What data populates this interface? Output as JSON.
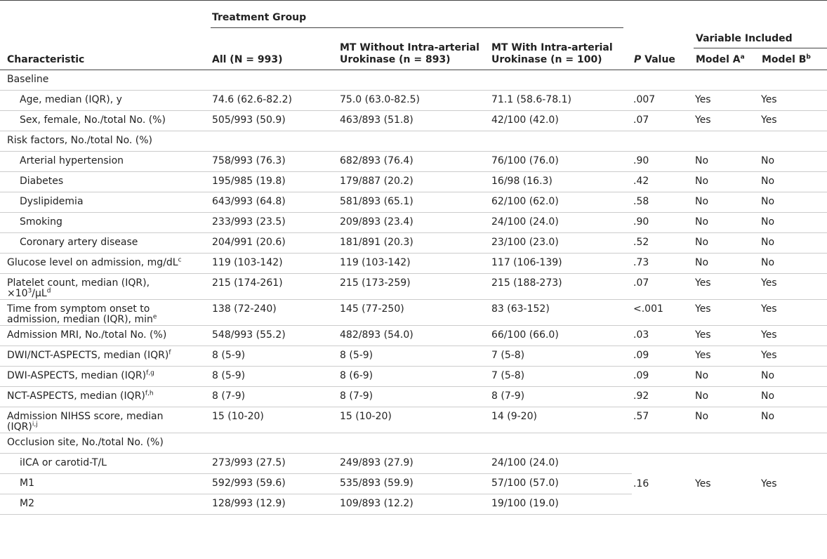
{
  "header": {
    "treatment_group": "Treatment Group",
    "variable_included": "Variable Included",
    "columns": [
      "Characteristic",
      "All (N = 993)",
      "MT Without Intra-arterial\nUrokinase (n = 893)",
      "MT With Intra-arterial\nUrokinase (n = 100)",
      [
        {
          "italic": "P"
        },
        " Value"
      ],
      [
        "Model A",
        {
          "sup": "a"
        }
      ],
      [
        "Model B",
        {
          "sup": "b"
        }
      ]
    ]
  },
  "rows": [
    {
      "label": "Baseline"
    },
    {
      "label": "Age, median (IQR), y",
      "indent": true,
      "cells": [
        "74.6 (62.6-82.2)",
        "75.0 (63.0-82.5)",
        "71.1 (58.6-78.1)",
        ".007",
        "Yes",
        "Yes"
      ]
    },
    {
      "label": "Sex, female, No./total No. (%)",
      "indent": true,
      "cells": [
        "505/993 (50.9)",
        "463/893 (51.8)",
        "42/100 (42.0)",
        ".07",
        "Yes",
        "Yes"
      ]
    },
    {
      "label": "Risk factors, No./total No. (%)"
    },
    {
      "label": "Arterial hypertension",
      "indent": true,
      "cells": [
        "758/993 (76.3)",
        "682/893 (76.4)",
        "76/100 (76.0)",
        ".90",
        "No",
        "No"
      ]
    },
    {
      "label": "Diabetes",
      "indent": true,
      "cells": [
        "195/985 (19.8)",
        "179/887 (20.2)",
        "16/98 (16.3)",
        ".42",
        "No",
        "No"
      ]
    },
    {
      "label": "Dyslipidemia",
      "indent": true,
      "cells": [
        "643/993 (64.8)",
        "581/893 (65.1)",
        "62/100 (62.0)",
        ".58",
        "No",
        "No"
      ]
    },
    {
      "label": "Smoking",
      "indent": true,
      "cells": [
        "233/993 (23.5)",
        "209/893 (23.4)",
        "24/100 (24.0)",
        ".90",
        "No",
        "No"
      ]
    },
    {
      "label": "Coronary artery disease",
      "indent": true,
      "cells": [
        "204/991 (20.6)",
        "181/891 (20.3)",
        "23/100 (23.0)",
        ".52",
        "No",
        "No"
      ]
    },
    {
      "label": [
        "Glucose level on admission, mg/dL",
        {
          "sup": "c"
        }
      ],
      "cells": [
        "119 (103-142)",
        "119 (103-142)",
        "117 (106-139)",
        ".73",
        "No",
        "No"
      ]
    },
    {
      "label": [
        "Platelet count, median (IQR),\n×10",
        {
          "sup": "3"
        },
        "/μL",
        {
          "sup": "d"
        }
      ],
      "cells": [
        "215 (174-261)",
        "215 (173-259)",
        "215 (188-273)",
        ".07",
        "Yes",
        "Yes"
      ]
    },
    {
      "label": [
        "Time from symptom onset to\nadmission, median (IQR), min",
        {
          "sup": "e"
        }
      ],
      "cells": [
        "138 (72-240)",
        "145 (77-250)",
        "83 (63-152)",
        "<.001",
        "Yes",
        "Yes"
      ]
    },
    {
      "label": "Admission MRI, No./total No. (%)",
      "cells": [
        "548/993 (55.2)",
        "482/893 (54.0)",
        "66/100 (66.0)",
        ".03",
        "Yes",
        "Yes"
      ]
    },
    {
      "label": [
        "DWI/NCT-ASPECTS, median (IQR)",
        {
          "sup": "f"
        }
      ],
      "cells": [
        "8 (5-9)",
        "8 (5-9)",
        "7 (5-8)",
        ".09",
        "Yes",
        "Yes"
      ]
    },
    {
      "label": [
        "DWI-ASPECTS, median (IQR)",
        {
          "sup": "f,g"
        }
      ],
      "cells": [
        "8 (5-9)",
        "8 (6-9)",
        "7 (5-8)",
        ".09",
        "No",
        "No"
      ]
    },
    {
      "label": [
        "NCT-ASPECTS, median (IQR)",
        {
          "sup": "f,h"
        }
      ],
      "cells": [
        "8 (7-9)",
        "8 (7-9)",
        "8 (7-9)",
        ".92",
        "No",
        "No"
      ]
    },
    {
      "label": [
        "Admission NIHSS score, median\n(IQR)",
        {
          "sup": "i,j"
        }
      ],
      "cells": [
        "15 (10-20)",
        "15 (10-20)",
        "14 (9-20)",
        ".57",
        "No",
        "No"
      ]
    },
    {
      "label": "Occlusion site, No./total No. (%)"
    },
    {
      "label": "iICA or carotid-T/L",
      "indent": true,
      "cells": [
        "273/993 (27.5)",
        "249/893 (27.9)",
        "24/100 (24.0)"
      ],
      "span": [
        ".16",
        "Yes",
        "Yes"
      ]
    },
    {
      "label": "M1",
      "indent": true,
      "cells": [
        "592/993 (59.6)",
        "535/893 (59.9)",
        "57/100 (57.0)"
      ]
    },
    {
      "label": "M2",
      "indent": true,
      "cells": [
        "128/993 (12.9)",
        "109/893 (12.2)",
        "19/100 (19.0)"
      ]
    }
  ]
}
